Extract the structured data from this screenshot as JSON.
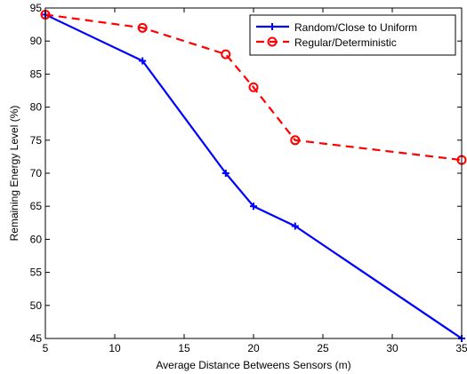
{
  "chart_data": {
    "type": "line",
    "xlabel": "Average Distance Betweens Sensors (m)",
    "ylabel": "Remaining Energy Level (%)",
    "xlim": [
      5,
      35
    ],
    "ylim": [
      45,
      95
    ],
    "xticks": [
      5,
      10,
      15,
      20,
      25,
      30,
      35
    ],
    "yticks": [
      45,
      50,
      55,
      60,
      65,
      70,
      75,
      80,
      85,
      90,
      95
    ],
    "grid": false,
    "legend_position": "top-right",
    "series": [
      {
        "name": "Random/Close to Uniform",
        "color": "#0000ff",
        "line_style": "solid",
        "marker": "plus",
        "x": [
          5,
          12,
          18,
          20,
          23,
          35
        ],
        "y": [
          94,
          87,
          70,
          65,
          62,
          45
        ]
      },
      {
        "name": "Regular/Deterministic",
        "color": "#ff0000",
        "line_style": "dashed",
        "marker": "circle",
        "x": [
          5,
          12,
          18,
          20,
          23,
          35
        ],
        "y": [
          94,
          92,
          88,
          83,
          75,
          72
        ]
      }
    ]
  }
}
